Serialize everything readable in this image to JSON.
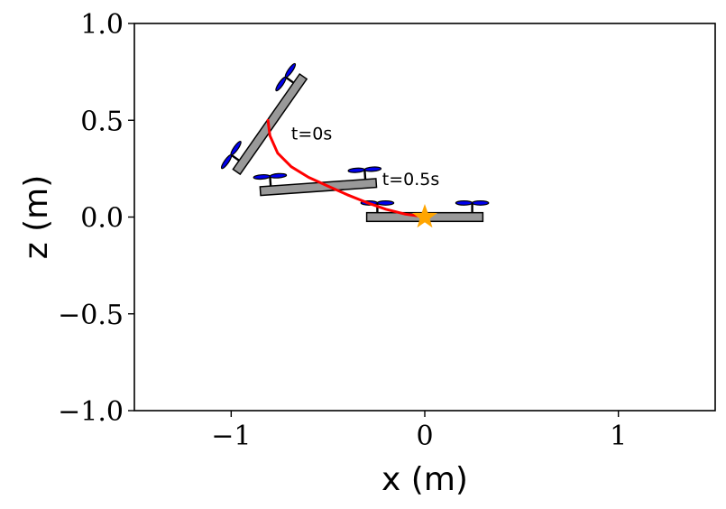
{
  "chart_data": {
    "type": "line",
    "xlabel": "x (m)",
    "ylabel": "z (m)",
    "xlim": [
      -1.5,
      1.5
    ],
    "ylim": [
      -1.0,
      1.0
    ],
    "grid": false,
    "x_ticks": [
      {
        "value": -1,
        "label": "−1"
      },
      {
        "value": 0,
        "label": "0"
      },
      {
        "value": 1,
        "label": "1"
      }
    ],
    "y_ticks": [
      {
        "value": 1.0,
        "label": "1.0"
      },
      {
        "value": 0.5,
        "label": "0.5"
      },
      {
        "value": 0.0,
        "label": "0.0"
      },
      {
        "value": -0.5,
        "label": "−0.5"
      },
      {
        "value": -1.0,
        "label": "−1.0"
      }
    ],
    "series": [
      {
        "color": "#ff0000",
        "x": [
          -0.81,
          -0.8,
          -0.76,
          -0.69,
          -0.6,
          -0.5,
          -0.4,
          -0.3,
          -0.2,
          -0.1,
          -0.03,
          0.0
        ],
        "z": [
          0.5,
          0.42,
          0.33,
          0.26,
          0.205,
          0.16,
          0.115,
          0.075,
          0.04,
          0.015,
          0.005,
          0.0
        ]
      }
    ],
    "quadrotors": [
      {
        "x": -0.8,
        "z": 0.48,
        "angle_deg": 55,
        "propeller_color": "#0000ee",
        "body_color": "#999999"
      },
      {
        "x": -0.55,
        "z": 0.155,
        "angle_deg": 4,
        "propeller_color": "#0000ee",
        "body_color": "#999999"
      },
      {
        "x": 0.0,
        "z": 0.0,
        "angle_deg": 0,
        "propeller_color": "#0000ee",
        "body_color": "#999999"
      }
    ],
    "target": {
      "x": 0.0,
      "z": 0.0,
      "marker": "star",
      "color": "#ffa500"
    },
    "annotations": [
      {
        "text": "t=0s",
        "x": -0.69,
        "z": 0.4
      },
      {
        "text": "t=0.5s",
        "x": -0.22,
        "z": 0.165
      }
    ]
  }
}
